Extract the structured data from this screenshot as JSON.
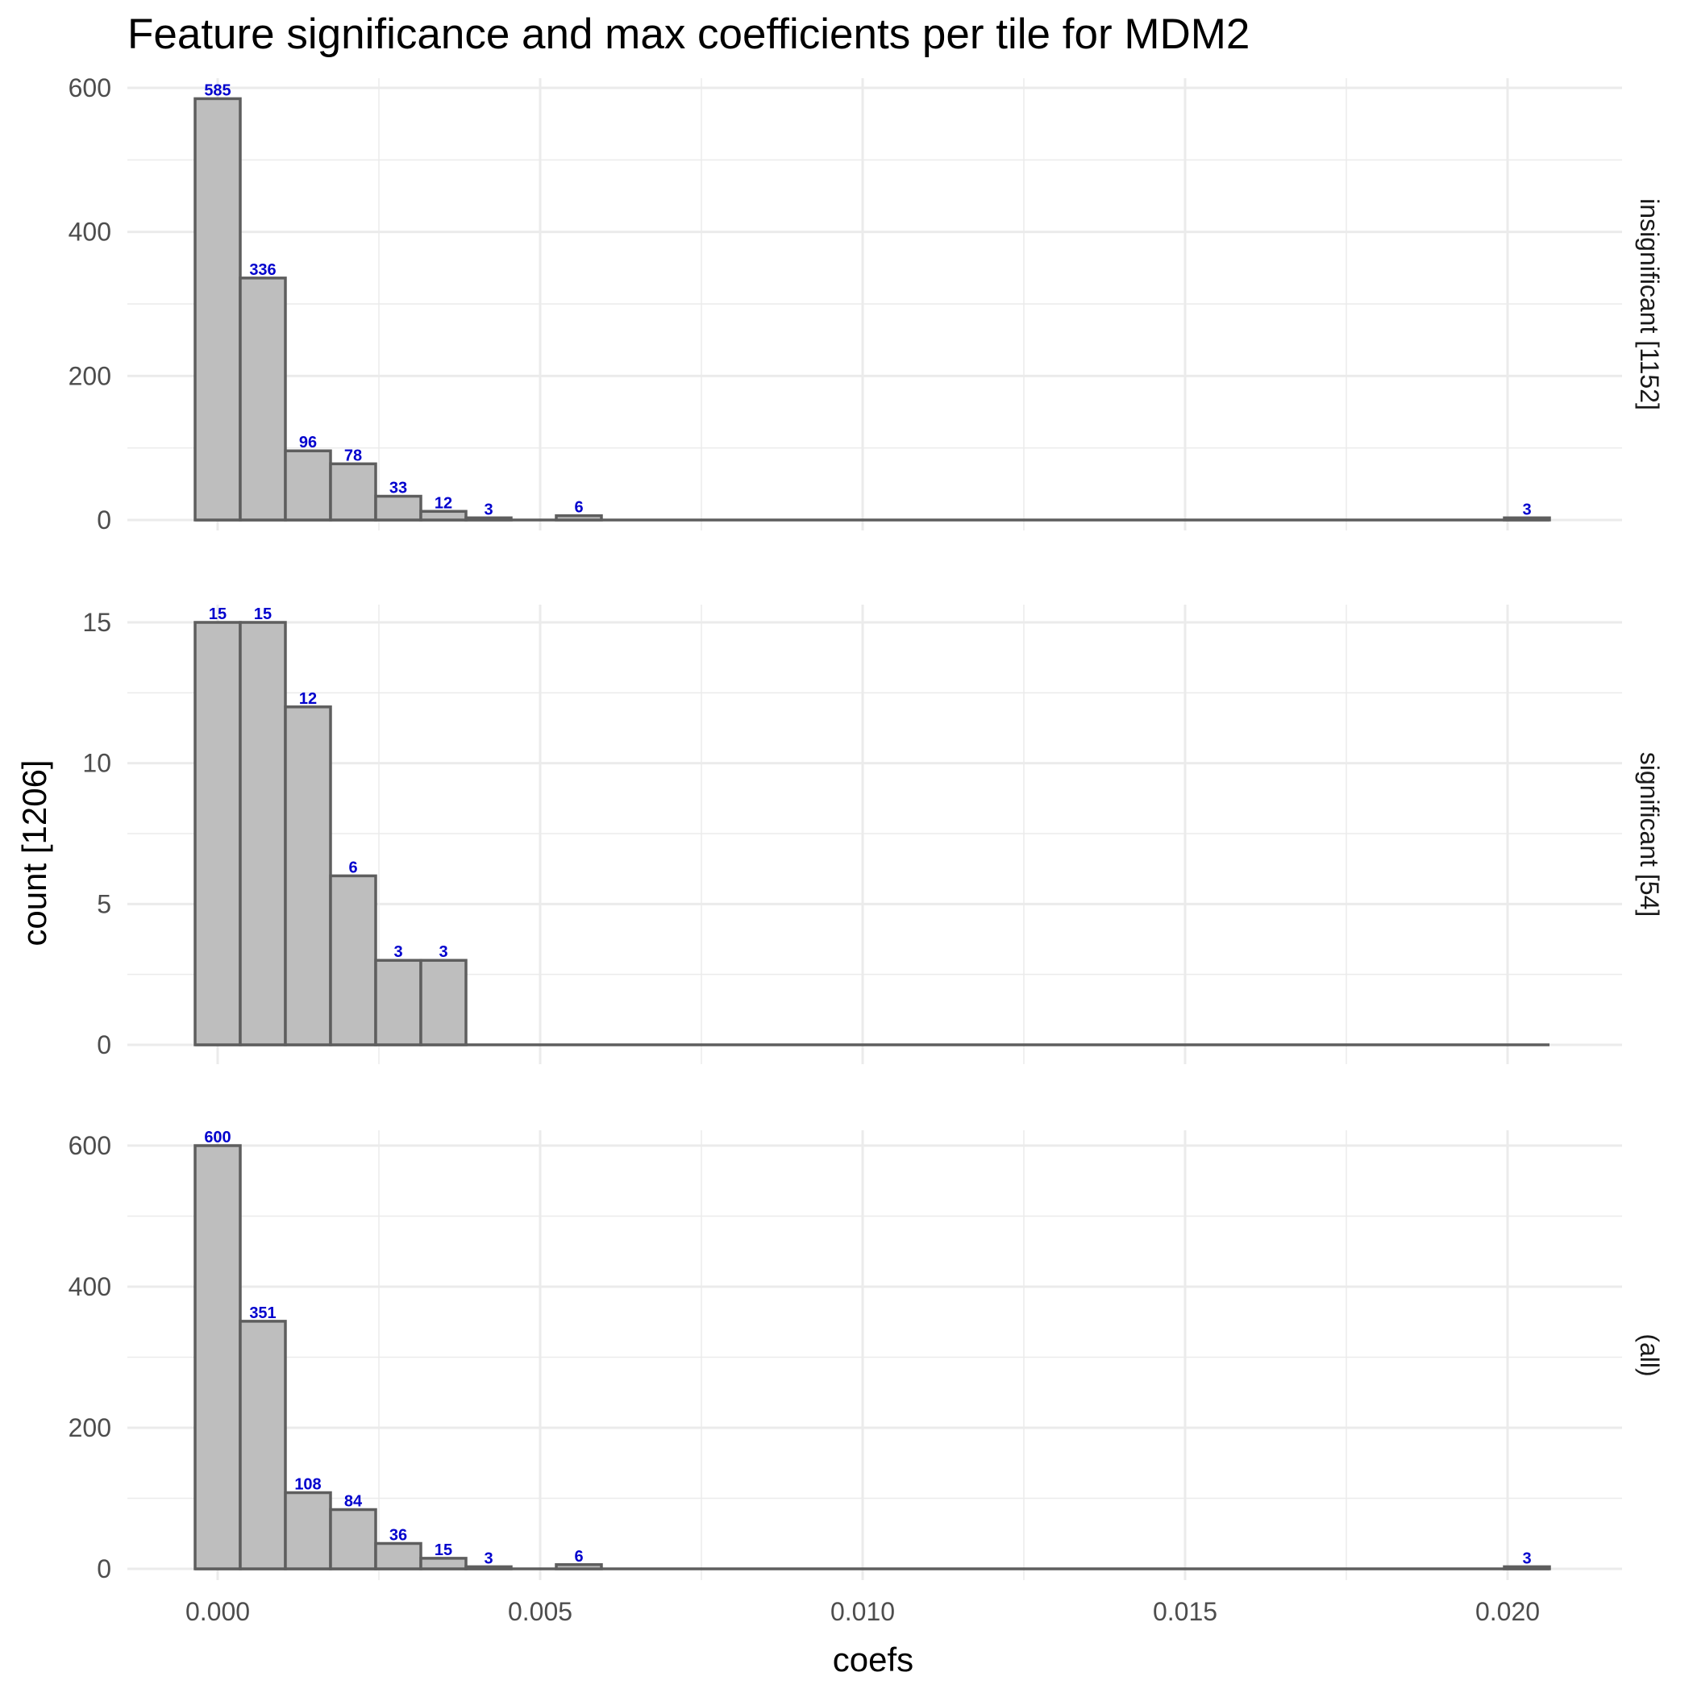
{
  "chart_data": {
    "type": "bar",
    "title": "Feature significance and max coefficients per tile for MDM2",
    "xlabel": "coefs",
    "ylabel": "count [1206]",
    "x_ticks": [
      0.0,
      0.005,
      0.01,
      0.015,
      0.02
    ],
    "x_tick_labels": [
      "0.000",
      "0.005",
      "0.010",
      "0.015",
      "0.020"
    ],
    "xlim": [
      -0.0014,
      0.0218
    ],
    "bin_width": 0.0007,
    "bin_start": -0.00035,
    "bin_count": 30,
    "grid": true,
    "panels": [
      {
        "label": "insignificant [1152]",
        "ylim": [
          0,
          620
        ],
        "y_ticks": [
          0,
          200,
          400,
          600
        ],
        "bins": [
          {
            "index": 0,
            "count": 585
          },
          {
            "index": 1,
            "count": 336
          },
          {
            "index": 2,
            "count": 96
          },
          {
            "index": 3,
            "count": 78
          },
          {
            "index": 4,
            "count": 33
          },
          {
            "index": 5,
            "count": 12
          },
          {
            "index": 6,
            "count": 3
          },
          {
            "index": 8,
            "count": 6
          },
          {
            "index": 29,
            "count": 3
          }
        ]
      },
      {
        "label": "significant [54]",
        "ylim": [
          0,
          15.8
        ],
        "y_ticks": [
          0,
          5,
          10,
          15
        ],
        "bins": [
          {
            "index": 0,
            "count": 15
          },
          {
            "index": 1,
            "count": 15
          },
          {
            "index": 2,
            "count": 12
          },
          {
            "index": 3,
            "count": 6
          },
          {
            "index": 4,
            "count": 3
          },
          {
            "index": 5,
            "count": 3
          }
        ]
      },
      {
        "label": "(all)",
        "ylim": [
          0,
          620
        ],
        "y_ticks": [
          0,
          200,
          400,
          600
        ],
        "bins": [
          {
            "index": 0,
            "count": 600
          },
          {
            "index": 1,
            "count": 351
          },
          {
            "index": 2,
            "count": 108
          },
          {
            "index": 3,
            "count": 84
          },
          {
            "index": 4,
            "count": 36
          },
          {
            "index": 5,
            "count": 15
          },
          {
            "index": 6,
            "count": 3
          },
          {
            "index": 8,
            "count": 6
          },
          {
            "index": 29,
            "count": 3
          }
        ]
      }
    ]
  }
}
